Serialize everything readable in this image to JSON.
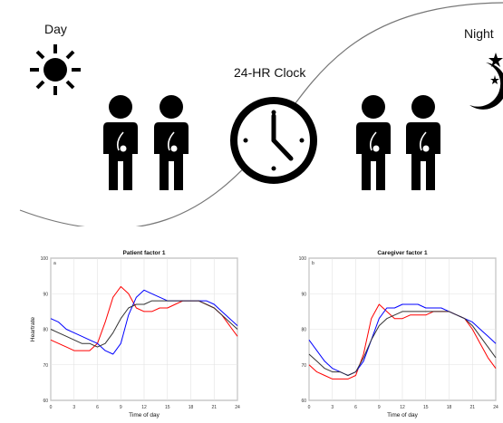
{
  "top": {
    "day_label": "Day",
    "night_label": "Night",
    "clock_label": "24-HR Clock",
    "icons": [
      "sun-icon",
      "person-icon",
      "clock-icon",
      "moon-icon",
      "star-icon"
    ]
  },
  "chart_data": [
    {
      "type": "line",
      "title": "Patient factor 1",
      "panel": "a",
      "xlabel": "Time of day",
      "ylabel": "Heartrate",
      "xlim": [
        0,
        24
      ],
      "ylim": [
        60,
        100
      ],
      "xticks": [
        0,
        3,
        6,
        9,
        12,
        15,
        18,
        21,
        24
      ],
      "yticks": [
        60,
        70,
        80,
        90,
        100
      ],
      "grid": true,
      "series": [
        {
          "color": "#ff0000",
          "x": [
            0,
            1,
            2,
            3,
            4,
            5,
            6,
            7,
            8,
            9,
            10,
            11,
            12,
            13,
            14,
            15,
            16,
            17,
            18,
            19,
            20,
            21,
            22,
            23,
            24
          ],
          "y": [
            77,
            76,
            75,
            74,
            74,
            74,
            76,
            82,
            89,
            92,
            90,
            86,
            85,
            85,
            86,
            86,
            87,
            88,
            88,
            88,
            87,
            86,
            84,
            81,
            78
          ]
        },
        {
          "color": "#0000ff",
          "x": [
            0,
            1,
            2,
            3,
            4,
            5,
            6,
            7,
            8,
            9,
            10,
            11,
            12,
            13,
            14,
            15,
            16,
            17,
            18,
            19,
            20,
            21,
            22,
            23,
            24
          ],
          "y": [
            83,
            82,
            80,
            79,
            78,
            77,
            76,
            74,
            73,
            76,
            84,
            89,
            91,
            90,
            89,
            88,
            88,
            88,
            88,
            88,
            88,
            87,
            85,
            83,
            81
          ]
        },
        {
          "color": "#333333",
          "x": [
            0,
            1,
            2,
            3,
            4,
            5,
            6,
            7,
            8,
            9,
            10,
            11,
            12,
            13,
            14,
            15,
            16,
            17,
            18,
            19,
            20,
            21,
            22,
            23,
            24
          ],
          "y": [
            80,
            79,
            78,
            77,
            76,
            76,
            75,
            76,
            79,
            83,
            86,
            87,
            87,
            88,
            88,
            88,
            88,
            88,
            88,
            88,
            87,
            86,
            84,
            82,
            80
          ]
        }
      ]
    },
    {
      "type": "line",
      "title": "Caregiver factor 1",
      "panel": "b",
      "xlabel": "Time of day",
      "ylabel": "",
      "xlim": [
        0,
        24
      ],
      "ylim": [
        60,
        100
      ],
      "xticks": [
        0,
        3,
        6,
        9,
        12,
        15,
        18,
        21,
        24
      ],
      "yticks": [
        60,
        70,
        80,
        90,
        100
      ],
      "grid": true,
      "series": [
        {
          "color": "#ff0000",
          "x": [
            0,
            1,
            2,
            3,
            4,
            5,
            6,
            7,
            8,
            9,
            10,
            11,
            12,
            13,
            14,
            15,
            16,
            17,
            18,
            19,
            20,
            21,
            22,
            23,
            24
          ],
          "y": [
            70,
            68,
            67,
            66,
            66,
            66,
            67,
            73,
            83,
            87,
            85,
            83,
            83,
            84,
            84,
            84,
            85,
            85,
            85,
            84,
            83,
            80,
            76,
            72,
            69
          ]
        },
        {
          "color": "#0000ff",
          "x": [
            0,
            1,
            2,
            3,
            4,
            5,
            6,
            7,
            8,
            9,
            10,
            11,
            12,
            13,
            14,
            15,
            16,
            17,
            18,
            19,
            20,
            21,
            22,
            23,
            24
          ],
          "y": [
            77,
            74,
            71,
            69,
            68,
            67,
            68,
            71,
            77,
            83,
            86,
            86,
            87,
            87,
            87,
            86,
            86,
            86,
            85,
            84,
            83,
            82,
            80,
            78,
            76
          ]
        },
        {
          "color": "#333333",
          "x": [
            0,
            1,
            2,
            3,
            4,
            5,
            6,
            7,
            8,
            9,
            10,
            11,
            12,
            13,
            14,
            15,
            16,
            17,
            18,
            19,
            20,
            21,
            22,
            23,
            24
          ],
          "y": [
            73,
            71,
            69,
            68,
            68,
            67,
            68,
            72,
            77,
            81,
            83,
            84,
            85,
            85,
            85,
            85,
            85,
            85,
            85,
            84,
            83,
            81,
            78,
            75,
            72
          ]
        }
      ]
    }
  ]
}
